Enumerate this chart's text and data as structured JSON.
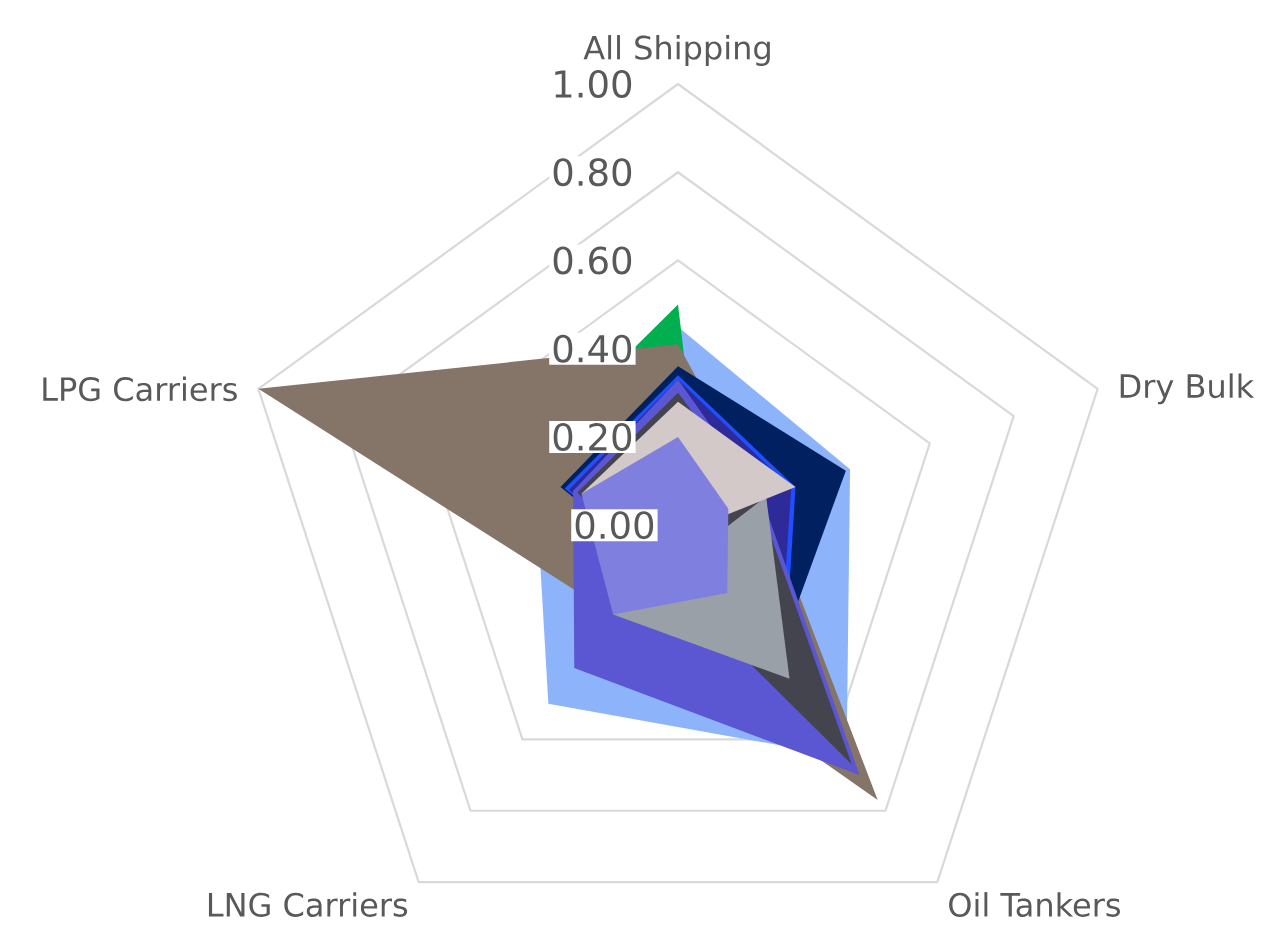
{
  "chart_data": {
    "type": "radar",
    "categories": [
      "All Shipping",
      "Dry Bulk",
      "Oil Tankers",
      "LNG Carriers",
      "LPG Carriers"
    ],
    "ylim": [
      0,
      1
    ],
    "yticks": [
      {
        "value": 0,
        "label": "0.00"
      },
      {
        "value": 0.2,
        "label": "0.20"
      },
      {
        "value": 0.4,
        "label": "0.40"
      },
      {
        "value": 0.6,
        "label": "0.60"
      },
      {
        "value": 0.8,
        "label": "0.80"
      },
      {
        "value": 1,
        "label": "1.00"
      }
    ],
    "grid": true,
    "series": [
      {
        "color": "#8db4fb",
        "values": [
          0.45,
          0.41,
          0.65,
          0.5,
          0.34
        ]
      },
      {
        "color": "#00b050",
        "values": [
          0.5,
          0.06,
          null,
          null,
          0.4
        ]
      },
      {
        "color": "#857468",
        "values": [
          0.41,
          0.2,
          0.77,
          0.25,
          1.0
        ]
      },
      {
        "color": "#002060",
        "values": [
          0.36,
          0.4,
          0.38,
          null,
          0.28
        ]
      },
      {
        "color": "#1f4fff",
        "values": [
          0.34,
          0.28,
          0.41,
          null,
          0.27
        ]
      },
      {
        "color": "#2e2a9a",
        "values": [
          0.33,
          0.27,
          0.39,
          null,
          0.26
        ]
      },
      {
        "color": "#5b57d2",
        "values": [
          0.33,
          0.2,
          0.7,
          0.4,
          0.25
        ]
      },
      {
        "color": "#44444e",
        "values": [
          0.3,
          0.19,
          0.67,
          null,
          0.24
        ]
      },
      {
        "color": "#9aa0a8",
        "values": [
          null,
          0.21,
          0.43,
          0.25,
          null
        ]
      },
      {
        "color": "#d2c9c8",
        "values": [
          0.28,
          0.28,
          0.02,
          null,
          0.23
        ]
      },
      {
        "color": "#7f7fe0",
        "values": [
          0.2,
          0.12,
          0.19,
          0.25,
          0.23
        ]
      }
    ]
  }
}
